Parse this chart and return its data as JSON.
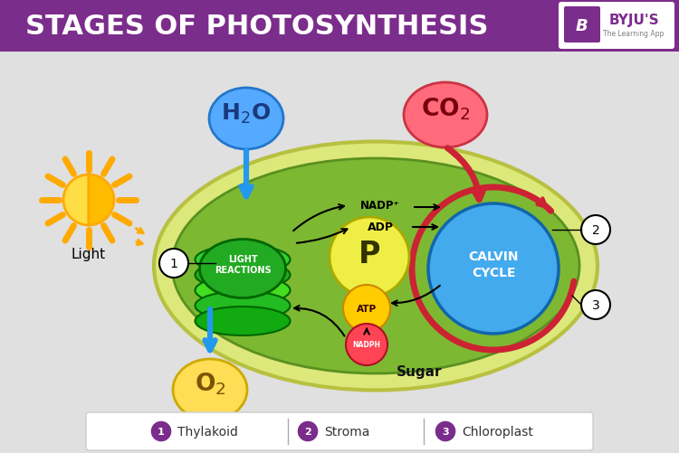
{
  "title": "STAGES OF PHOTOSYNTHESIS",
  "title_color": "#ffffff",
  "title_bg": "#7b2d8b",
  "bg_color": "#e0e0e0",
  "legend": [
    {
      "num": "1",
      "label": "Thylakoid"
    },
    {
      "num": "2",
      "label": "Stroma"
    },
    {
      "num": "3",
      "label": "Chloroplast"
    }
  ],
  "legend_circle_color": "#7b2d8b",
  "byju_color": "#7b2d8b",
  "chloro_outer_face": "#dde87a",
  "chloro_outer_edge": "#b8c040",
  "stroma_face": "#7db832",
  "stroma_edge": "#5a9020",
  "disc_colors": [
    "#33cc33",
    "#22aa22",
    "#44dd22",
    "#22bb22",
    "#11aa11"
  ],
  "lr_face": "#22aa22",
  "lr_edge": "#006600",
  "h2o_face": "#55aaff",
  "h2o_edge": "#2277cc",
  "co2_face": "#ff6b7a",
  "co2_edge": "#cc3344",
  "o2_face": "#ffdd55",
  "o2_edge": "#ccaa00",
  "calvin_face": "#44aaee",
  "calvin_edge": "#1166aa",
  "p_face": "#eeee44",
  "p_edge": "#aaaa00",
  "atp_face": "#ffcc00",
  "atp_edge": "#cc8800",
  "nadph_face": "#ff4455",
  "nadph_edge": "#aa1122",
  "arrow_blue": "#2299ee",
  "arrow_red": "#cc2233",
  "sun_ray_color": "#ffaa00",
  "sun_left_face": "#ffdd44",
  "sun_right_face": "#ffbb00"
}
